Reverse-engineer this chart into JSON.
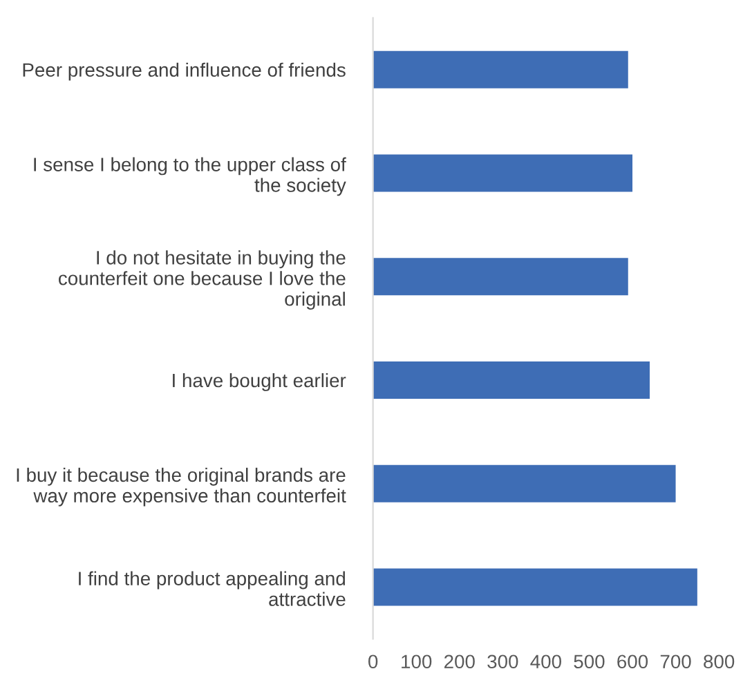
{
  "chart_data": {
    "type": "bar",
    "orientation": "horizontal",
    "categories": [
      "Peer pressure and influence of friends",
      "I sense I belong to the upper class of\nthe society",
      "I do not hesitate in buying the\ncounterfeit one because I love the\noriginal",
      "I have bought earlier",
      "I buy it because the original brands are\nway more expensive than counterfeit",
      "I find the product appealing and\nattractive"
    ],
    "values": [
      590,
      600,
      590,
      640,
      700,
      750
    ],
    "color": "#3e6db5",
    "xlim": [
      0,
      800
    ],
    "xticks": [
      0,
      100,
      200,
      300,
      400,
      500,
      600,
      700,
      800
    ],
    "grid": false
  }
}
